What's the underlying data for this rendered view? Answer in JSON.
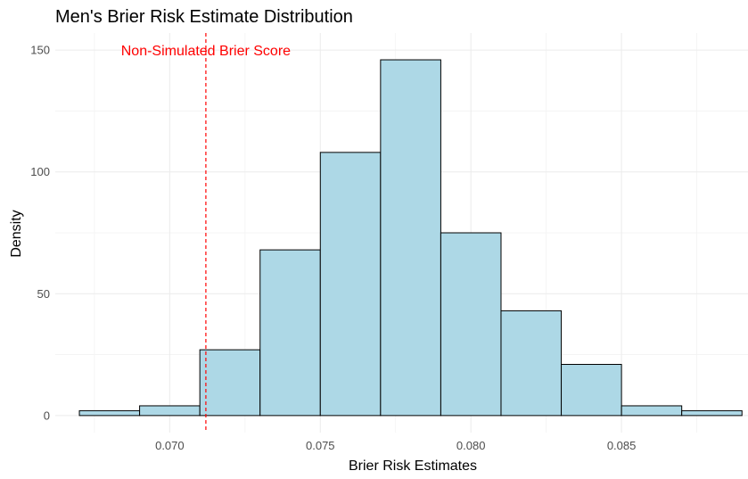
{
  "chart_data": {
    "type": "bar",
    "title": "Men's Brier Risk Estimate Distribution",
    "xlabel": "Brier Risk Estimates",
    "ylabel": "Density",
    "xlim": [
      0.0662,
      0.0892
    ],
    "ylim": [
      -7,
      157
    ],
    "x_ticks": [
      {
        "value": 0.07,
        "label": "0.070"
      },
      {
        "value": 0.075,
        "label": "0.075"
      },
      {
        "value": 0.08,
        "label": "0.080"
      },
      {
        "value": 0.085,
        "label": "0.085"
      }
    ],
    "y_ticks": [
      {
        "value": 0,
        "label": "0"
      },
      {
        "value": 50,
        "label": "50"
      },
      {
        "value": 100,
        "label": "100"
      },
      {
        "value": 150,
        "label": "150"
      }
    ],
    "bin_width": 0.002,
    "bins": [
      {
        "x0": 0.067,
        "x1": 0.069,
        "density": 2
      },
      {
        "x0": 0.069,
        "x1": 0.071,
        "density": 4
      },
      {
        "x0": 0.071,
        "x1": 0.073,
        "density": 27
      },
      {
        "x0": 0.073,
        "x1": 0.075,
        "density": 68
      },
      {
        "x0": 0.075,
        "x1": 0.077,
        "density": 108
      },
      {
        "x0": 0.077,
        "x1": 0.079,
        "density": 146
      },
      {
        "x0": 0.079,
        "x1": 0.081,
        "density": 75
      },
      {
        "x0": 0.081,
        "x1": 0.083,
        "density": 43
      },
      {
        "x0": 0.083,
        "x1": 0.085,
        "density": 21
      },
      {
        "x0": 0.085,
        "x1": 0.087,
        "density": 4
      },
      {
        "x0": 0.087,
        "x1": 0.089,
        "density": 2
      }
    ],
    "reference_line": {
      "x": 0.0712,
      "label": "Non-Simulated Brier Score",
      "label_y": 150,
      "style": "dashed"
    },
    "grid": true,
    "colors": {
      "bar_fill": "#add8e6",
      "bar_outline": "#000000",
      "reference_line": "#ff0000",
      "annotation": "#ff0000"
    }
  }
}
